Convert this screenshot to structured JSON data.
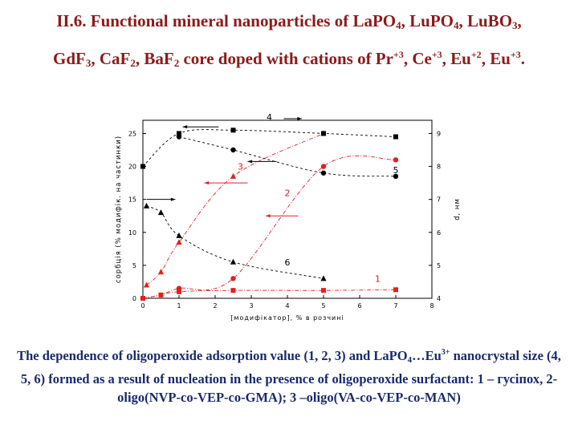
{
  "title": {
    "line1": "II.6. Functional mineral nanoparticles of LaPO",
    "s1": "4",
    "c1": ", LuPO",
    "s2": "4",
    "c2": ", LuBO",
    "s3": "3",
    "c3": ",",
    "line2": "GdF",
    "s4": "3",
    "c4": ", CaF",
    "s5": "2",
    "c5": ", BaF",
    "s6": "2",
    "c6": " core doped with cations of Pr",
    "p1": "+3",
    "c7": ", Ce",
    "p2": "+3",
    "c8": ", Eu",
    "p3": "+2",
    "c9": ", Eu",
    "p4": "+3",
    "c10": "."
  },
  "caption": {
    "t1": "The dependence of oligoperoxide adsorption  value (1, 2, 3) and LaPO",
    "s1": "4",
    "t2": "…Eu",
    "p1": "3+",
    "t3": " nanocrystal size (4, 5, 6) formed as a result of nucleation in the presence of oligoperoxide surfactant: 1 – гусіпох, 2- oligo(NVP-co-VEP-co-GMA); 3 –oligo(VA-co-VEP-co-MAN)"
  },
  "chart_data": {
    "type": "scatter",
    "xlabel": "[модифікатор], % в розчині",
    "ylabel": "сорбція (% модифік. на частинки)",
    "y2label": "d, нм",
    "xlim": [
      0,
      8
    ],
    "ylim": [
      0,
      27
    ],
    "y2lim": [
      4,
      9.4
    ],
    "xticks": [
      0,
      1,
      2,
      3,
      4,
      5,
      6,
      7,
      8
    ],
    "yticks": [
      0,
      5,
      10,
      15,
      20,
      25
    ],
    "y2ticks": [
      4,
      5,
      6,
      7,
      8,
      9
    ],
    "colors": {
      "red": "#e02020",
      "black": "#000000"
    },
    "series": [
      {
        "name": "1",
        "axis": "left",
        "color": "#e02020",
        "marker": "square",
        "points": [
          [
            0,
            0
          ],
          [
            0.5,
            0.5
          ],
          [
            1,
            1
          ],
          [
            2.5,
            1.2
          ],
          [
            5,
            1.2
          ],
          [
            7,
            1.3
          ]
        ],
        "label_at": [
          6.5,
          2.5
        ]
      },
      {
        "name": "2",
        "axis": "left",
        "color": "#e02020",
        "marker": "circle",
        "points": [
          [
            0,
            0
          ],
          [
            0.5,
            0.5
          ],
          [
            1,
            1.5
          ],
          [
            2.5,
            3
          ],
          [
            5,
            20
          ],
          [
            7,
            21
          ]
        ],
        "label_at": [
          4,
          15.5
        ]
      },
      {
        "name": "3",
        "axis": "left",
        "color": "#e02020",
        "marker": "triangle",
        "points": [
          [
            0.1,
            2
          ],
          [
            0.5,
            4
          ],
          [
            1,
            8.5
          ],
          [
            2.5,
            18.5
          ],
          [
            5,
            25
          ]
        ],
        "label_at": [
          2.7,
          19.5
        ]
      },
      {
        "name": "4",
        "axis": "right",
        "color": "#000000",
        "marker": "square",
        "points": [
          [
            0,
            8
          ],
          [
            1,
            9
          ],
          [
            2.5,
            9.1
          ],
          [
            5,
            9
          ],
          [
            7,
            8.9
          ]
        ],
        "label_at": [
          3.5,
          9.4
        ]
      },
      {
        "name": "5",
        "axis": "right",
        "color": "#000000",
        "marker": "circle",
        "points": [
          [
            1,
            8.9
          ],
          [
            2.5,
            8.5
          ],
          [
            5,
            7.8
          ],
          [
            7,
            7.7
          ]
        ],
        "label_at": [
          7,
          7.8
        ]
      },
      {
        "name": "6",
        "axis": "right",
        "color": "#000000",
        "marker": "triangle",
        "points": [
          [
            0.1,
            6.8
          ],
          [
            0.5,
            6.6
          ],
          [
            1,
            5.9
          ],
          [
            2.5,
            5.1
          ],
          [
            5,
            4.6
          ]
        ],
        "label_at": [
          4,
          5
        ]
      }
    ],
    "arrows": [
      {
        "from": [
          0.1,
          15
        ],
        "to": [
          0.9,
          15
        ],
        "dir": "right",
        "color": "#000000"
      },
      {
        "from": [
          2.1,
          9.2
        ],
        "to": [
          1.1,
          9.2
        ],
        "dir": "left",
        "color": "#000000"
      },
      {
        "from": [
          3.9,
          9.45
        ],
        "to": [
          4.4,
          9.45
        ],
        "dir": "right",
        "color": "#000000"
      },
      {
        "from": [
          3.7,
          8.15
        ],
        "to": [
          2.9,
          8.15
        ],
        "dir": "right",
        "color": "#000000"
      },
      {
        "from": [
          2.9,
          17.5
        ],
        "to": [
          1.7,
          17.5
        ],
        "dir": "left",
        "color": "#e02020"
      },
      {
        "from": [
          4.3,
          12.5
        ],
        "to": [
          3.4,
          12.5
        ],
        "dir": "left",
        "color": "#e02020"
      }
    ]
  }
}
